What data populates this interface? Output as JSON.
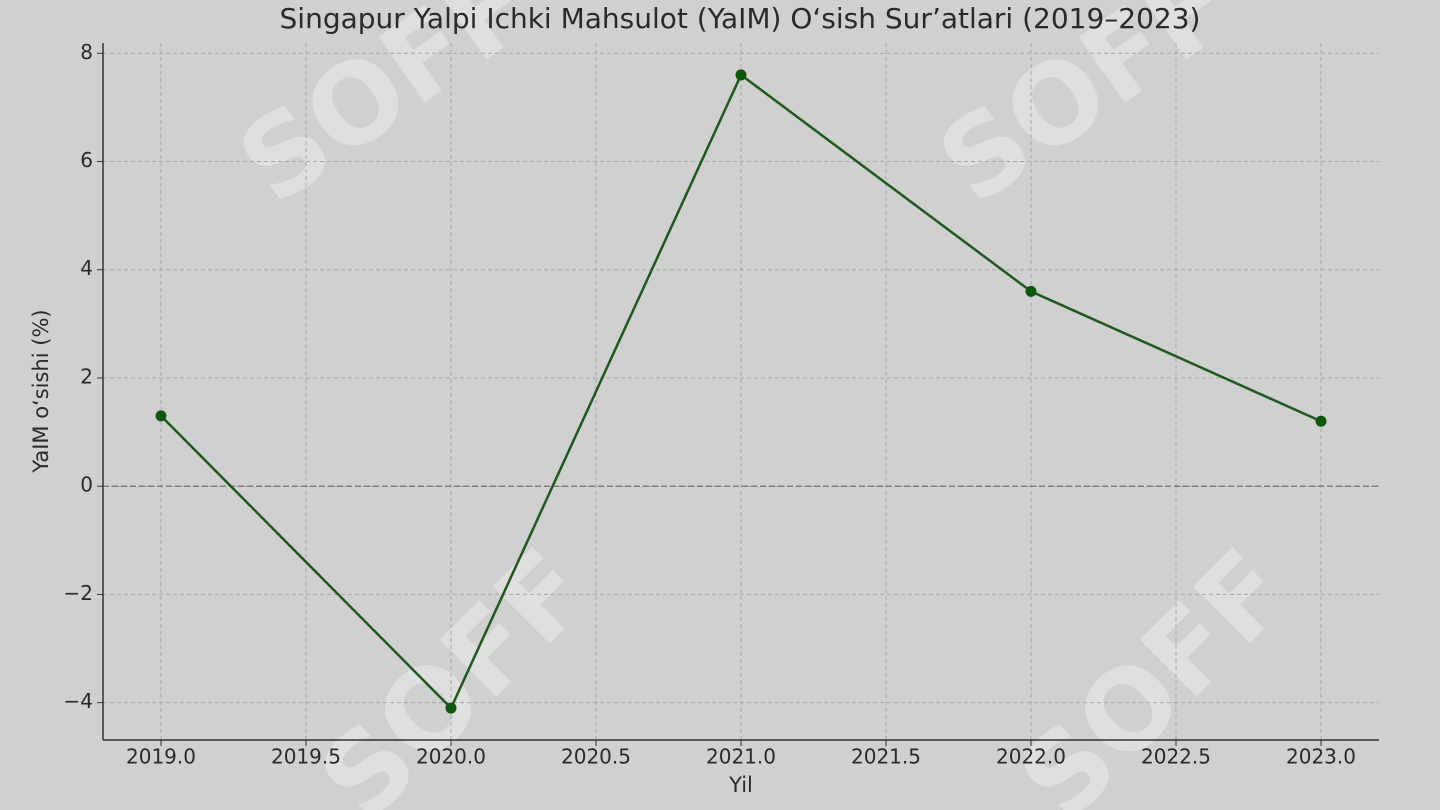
{
  "chart_data": {
    "type": "line",
    "title": "Singapur Yalpi Ichki Mahsulot (YaIM) O‘sish Sur’atlari (2019–2023)",
    "xlabel": "Yil",
    "ylabel": "YaIM o‘sishi (%)",
    "x": [
      2019,
      2020,
      2021,
      2022,
      2023
    ],
    "series": [
      {
        "name": "YaIM o‘sishi",
        "color": "#1e5a1e",
        "marker_color": "#0b5a0b",
        "values": [
          1.3,
          -4.1,
          7.6,
          3.6,
          1.2
        ]
      }
    ],
    "xlim": [
      2018.8,
      2023.2
    ],
    "xticks": [
      {
        "value": 2019,
        "label": "2019.0"
      },
      {
        "value": 2019.5,
        "label": "2019.5"
      },
      {
        "value": 2020,
        "label": "2020.0"
      },
      {
        "value": 2020.5,
        "label": "2020.5"
      },
      {
        "value": 2021,
        "label": "2021.0"
      },
      {
        "value": 2021.5,
        "label": "2021.5"
      },
      {
        "value": 2022,
        "label": "2022.0"
      },
      {
        "value": 2022.5,
        "label": "2022.5"
      },
      {
        "value": 2023,
        "label": "2023.0"
      }
    ],
    "ylim": [
      -4.69,
      8.19
    ],
    "yticks": [
      {
        "value": -4,
        "label": "−4"
      },
      {
        "value": -2,
        "label": "−2"
      },
      0,
      2,
      4,
      6,
      8
    ],
    "reference_line": 0,
    "grid": true,
    "watermark": "SOFF"
  }
}
